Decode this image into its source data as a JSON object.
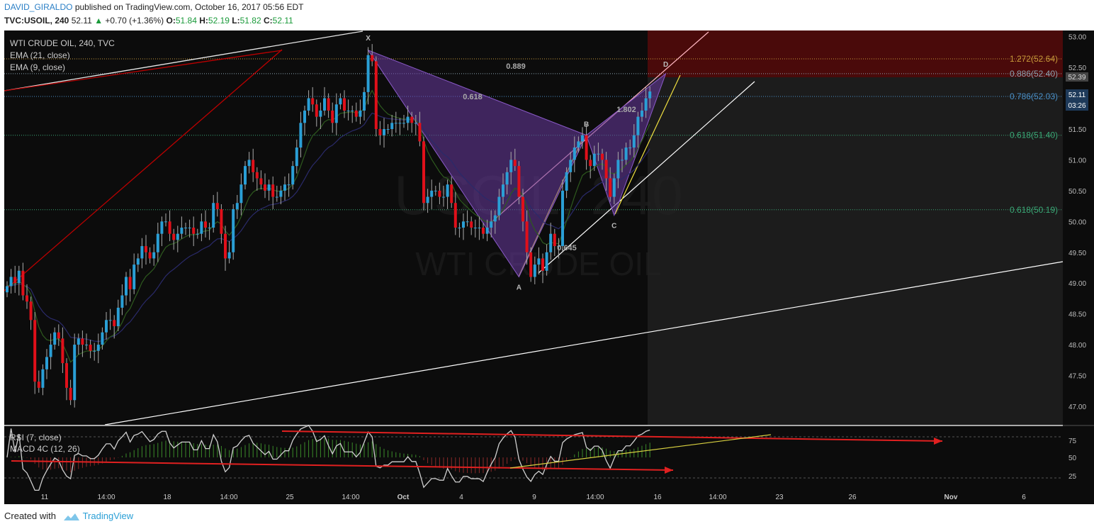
{
  "header": {
    "author": "DAVID_GIRALDO",
    "published": "published on TradingView.com, October 16, 2017 05:56 EDT",
    "symbol": "TVC:USOIL, 240",
    "last": "52.11",
    "change": "+0.70 (+1.36%)",
    "o_label": "O:",
    "o": "51.84",
    "h_label": "H:",
    "h": "52.19",
    "l_label": "L:",
    "l": "51.82",
    "c_label": "C:",
    "c": "52.11"
  },
  "legend": {
    "title": "WTI CRUDE OIL, 240, TVC",
    "ema21": "EMA (21, close)",
    "ema9": "EMA (9, close)",
    "rsi": "RSI (7, close)",
    "macd": "MACD 4C (12, 26)"
  },
  "watermark": {
    "line1": "USOIL, 240",
    "line2": "WTI CRUDE OIL"
  },
  "pattern_points": [
    {
      "name": "X",
      "value": 52.78
    },
    {
      "name": "A",
      "value": 49.1
    },
    {
      "name": "B",
      "value": 51.4
    },
    {
      "name": "C",
      "value": 50.1
    },
    {
      "name": "D",
      "value": 52.4
    }
  ],
  "pattern_ratios": [
    "0.889",
    "0.618",
    "1.802",
    "0.645"
  ],
  "fib_levels": [
    {
      "label": "1.272(52.64)",
      "value": 52.64,
      "color": "#c89a3a"
    },
    {
      "label": "0.886(52.40)",
      "value": 52.4,
      "color": "#8aa2b0"
    },
    {
      "label": "0.786(52.03)",
      "value": 52.03,
      "color": "#4a90c8"
    },
    {
      "label": "0.618(51.40)",
      "value": 51.4,
      "color": "#3aa876"
    },
    {
      "label": "0.618(50.19)",
      "value": 50.19,
      "color": "#3aa876"
    }
  ],
  "price_badges": {
    "level": "52.39",
    "last": "52.11",
    "countdown": "03:26"
  },
  "chart_data": {
    "type": "candlestick",
    "interval": "240",
    "ylim": [
      46.7,
      53.1
    ],
    "yticks": [
      "53.00",
      "52.50",
      "52.00",
      "51.50",
      "51.00",
      "50.50",
      "50.00",
      "49.50",
      "49.00",
      "48.50",
      "48.00",
      "47.50",
      "47.00"
    ],
    "xticks": [
      "11",
      "14:00",
      "18",
      "14:00",
      "25",
      "14:00",
      "Oct",
      "4",
      "9",
      "14:00",
      "16",
      "14:00",
      "23",
      "26",
      "Nov",
      "6"
    ],
    "close": [
      48.95,
      49.1,
      49.0,
      49.2,
      48.8,
      48.7,
      48.4,
      47.4,
      47.3,
      47.6,
      47.8,
      48.0,
      48.2,
      48.1,
      47.7,
      47.3,
      47.1,
      48.0,
      48.1,
      48.0,
      48.0,
      47.9,
      47.9,
      48.0,
      48.2,
      48.4,
      48.4,
      48.3,
      48.6,
      48.8,
      49.1,
      48.9,
      49.3,
      49.4,
      49.6,
      49.5,
      49.4,
      49.5,
      49.8,
      50.0,
      50.0,
      49.8,
      49.7,
      49.8,
      49.9,
      49.9,
      49.9,
      49.8,
      49.8,
      50.0,
      49.9,
      49.9,
      50.3,
      50.2,
      49.8,
      49.4,
      49.5,
      50.2,
      50.3,
      50.6,
      50.9,
      51.0,
      50.8,
      50.7,
      50.6,
      50.5,
      50.6,
      50.4,
      50.4,
      50.5,
      50.6,
      50.6,
      50.9,
      51.2,
      51.6,
      51.8,
      52.0,
      51.9,
      51.7,
      51.8,
      52.0,
      51.8,
      51.6,
      51.9,
      52.0,
      51.8,
      51.8,
      51.8,
      51.7,
      51.8,
      52.1,
      52.7,
      52.6,
      51.5,
      51.4,
      51.5,
      51.5,
      51.6,
      51.6,
      51.6,
      51.6,
      51.7,
      51.6,
      51.6,
      51.3,
      50.3,
      50.4,
      50.5,
      50.5,
      50.4,
      50.4,
      50.6,
      50.3,
      49.9,
      49.9,
      50.0,
      50.0,
      49.9,
      49.9,
      49.9,
      49.8,
      49.9,
      50.0,
      50.1,
      50.4,
      50.6,
      50.8,
      51.0,
      50.9,
      50.4,
      50.0,
      49.5,
      49.1,
      49.3,
      49.4,
      49.2,
      49.5,
      49.8,
      49.6,
      49.6,
      50.5,
      50.8,
      51.0,
      51.2,
      51.3,
      51.4,
      51.0,
      50.9,
      51.1,
      51.1,
      51.0,
      50.7,
      50.4,
      50.7,
      51.0,
      51.0,
      51.2,
      51.2,
      51.4,
      51.7,
      51.8,
      52.0,
      52.11
    ],
    "ema21_label": "EMA (21, close)",
    "ema9_label": "EMA (9, close)",
    "rsi": {
      "name": "RSI (7, close)",
      "levels": [
        75,
        50,
        25
      ]
    }
  }
}
